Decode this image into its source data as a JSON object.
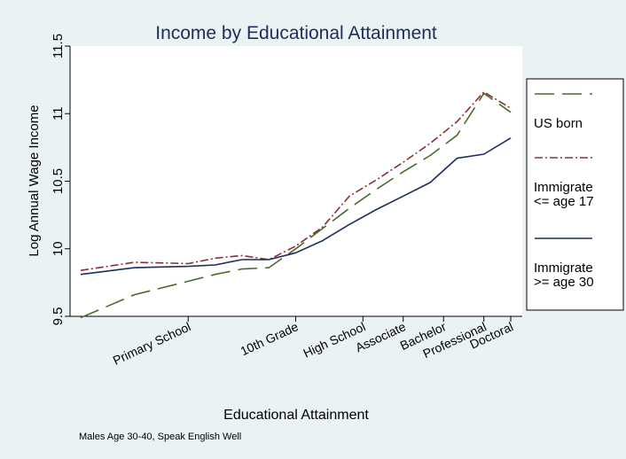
{
  "chart_data": {
    "type": "line",
    "title": "Income by Educational Attainment",
    "xlabel": "Educational Attainment",
    "ylabel": "Log Annual Wage Income",
    "note": "Males Age 30-40, Speak English Well",
    "ylim": [
      9.5,
      11.5
    ],
    "yticks": [
      9.5,
      10,
      10.5,
      11,
      11.5
    ],
    "ytick_labels": [
      "9.5",
      "10",
      "10.5",
      "11",
      "11.5"
    ],
    "xlim": [
      0,
      16
    ],
    "x": [
      0,
      2,
      4,
      5,
      6,
      7,
      8,
      9,
      10,
      11,
      12,
      13,
      14,
      15,
      16
    ],
    "xtick_labels": [
      {
        "x": 4,
        "label": "Primary School"
      },
      {
        "x": 8,
        "label": "10th Grade"
      },
      {
        "x": 10.5,
        "label": "High School"
      },
      {
        "x": 12,
        "label": "Associate"
      },
      {
        "x": 13.5,
        "label": "Bachelor"
      },
      {
        "x": 15,
        "label": "Professional"
      },
      {
        "x": 16,
        "label": "Doctoral"
      }
    ],
    "series": [
      {
        "name": "US born",
        "color": "#4a6b2a",
        "dash": "22,9",
        "values": [
          9.49,
          9.66,
          9.76,
          9.81,
          9.85,
          9.86,
          10.0,
          10.15,
          10.3,
          10.44,
          10.57,
          10.69,
          10.84,
          11.15,
          11.01
        ]
      },
      {
        "name": "Immigrate <= age 17",
        "color": "#8b2e33",
        "dash": "9,3,2,3",
        "values": [
          9.84,
          9.9,
          9.89,
          9.93,
          9.95,
          9.92,
          10.02,
          10.16,
          10.39,
          10.51,
          10.64,
          10.78,
          10.94,
          11.16,
          11.04
        ]
      },
      {
        "name": "Immigrate >= age 30",
        "color": "#1a2f5c",
        "dash": "",
        "values": [
          9.81,
          9.86,
          9.87,
          9.88,
          9.92,
          9.92,
          9.97,
          10.06,
          10.18,
          10.29,
          10.39,
          10.49,
          10.67,
          10.7,
          10.82
        ]
      }
    ],
    "grid": false,
    "legend_position": "right"
  }
}
